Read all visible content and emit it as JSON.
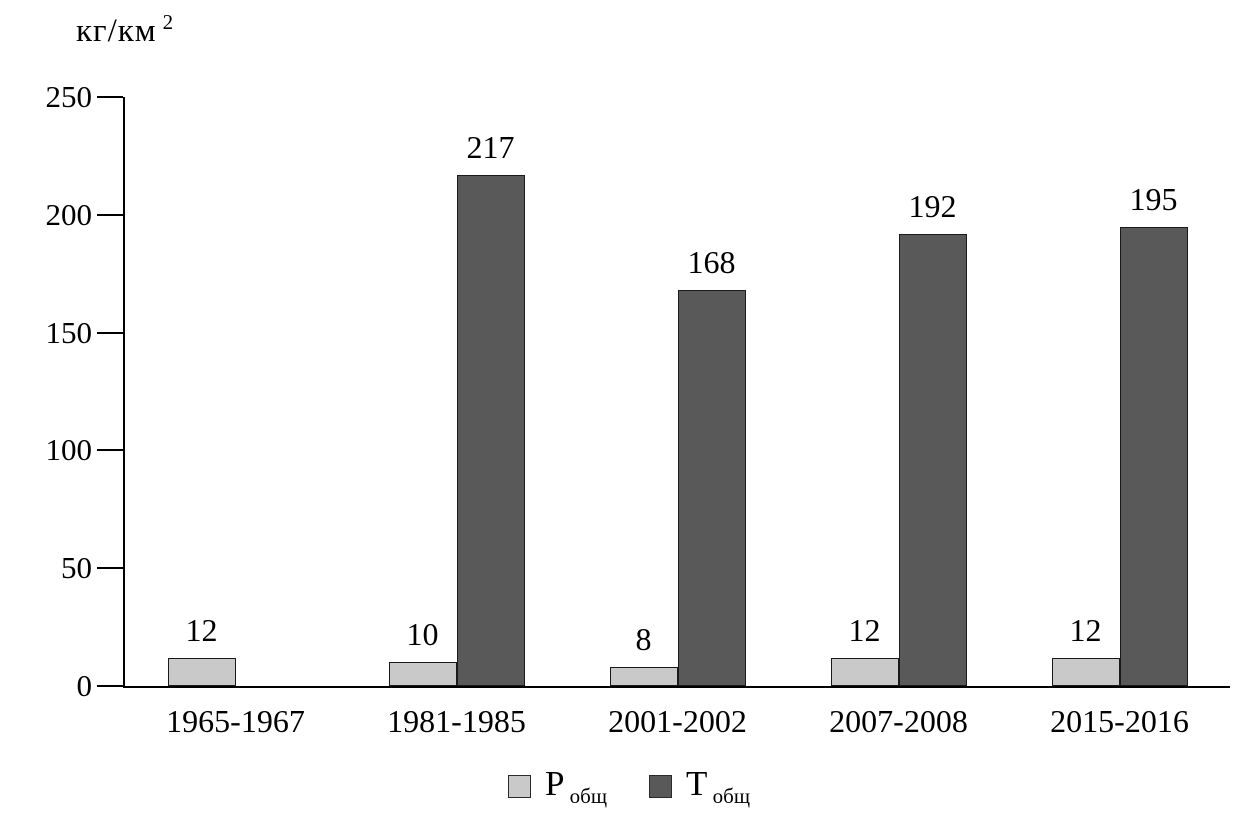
{
  "y_axis_title": {
    "base": "кг/км",
    "sup": "2"
  },
  "chart_data": {
    "type": "bar",
    "title": "",
    "ylabel": "кг/км²",
    "xlabel": "",
    "ylim": [
      0,
      250
    ],
    "yticks": [
      0,
      50,
      100,
      150,
      200,
      250
    ],
    "grid": false,
    "legend_position": "bottom",
    "categories": [
      "1965-1967",
      "1981-1985",
      "2001-2002",
      "2007-2008",
      "2015-2016"
    ],
    "series": [
      {
        "name": "Р общ",
        "label_base": "Р",
        "label_sub": "общ",
        "color": "#c9c9c9",
        "values": [
          12,
          10,
          8,
          12,
          12
        ]
      },
      {
        "name": "Т общ",
        "label_base": "Т",
        "label_sub": "общ",
        "color": "#595959",
        "values": [
          null,
          217,
          168,
          192,
          195
        ]
      }
    ]
  },
  "colors": {
    "axis": "#000000",
    "text": "#000000",
    "bar_border": "#1a1a1a"
  }
}
